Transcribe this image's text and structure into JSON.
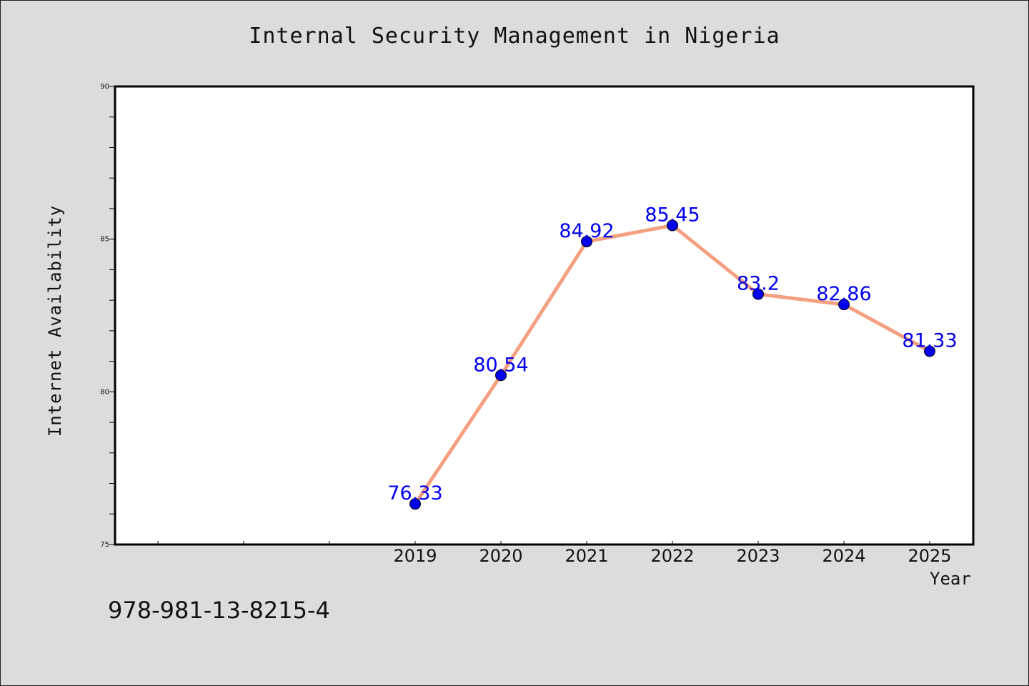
{
  "footer": {
    "isbn": "978-981-13-8215-4"
  },
  "chart_data": {
    "type": "line",
    "title": "Internal Security Management in Nigeria",
    "xlabel": "Year",
    "ylabel": "Internet Availability",
    "x": [
      "2019",
      "2020",
      "2021",
      "2022",
      "2023",
      "2024",
      "2025"
    ],
    "series": [
      {
        "values": [
          76.33,
          80.54,
          84.92,
          85.45,
          83.2,
          82.86,
          81.33
        ],
        "data_labels": [
          "76.33",
          "80.54",
          "84.92",
          "85.45",
          "83.2",
          "82.86",
          "81.33"
        ],
        "line_color": "#f4a080",
        "marker_color": "#0000ee",
        "label_color": "#0000ee"
      }
    ],
    "ylim": [
      75,
      90
    ],
    "yticks": [
      "75",
      "80",
      "85",
      "90"
    ],
    "grid": false,
    "legend": "none"
  }
}
